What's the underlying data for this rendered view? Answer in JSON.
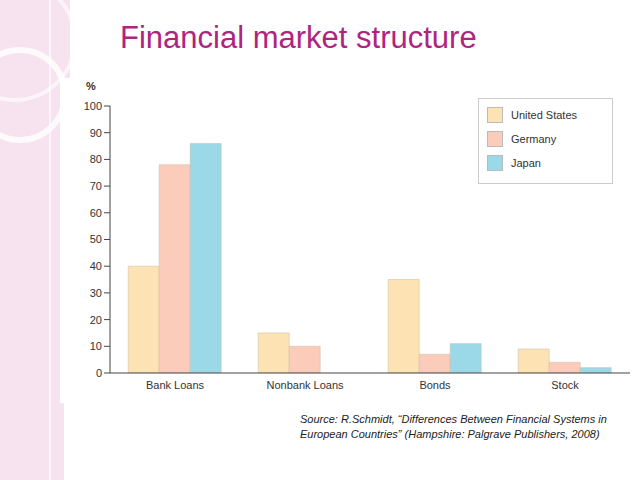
{
  "chart_data": {
    "type": "bar",
    "title": "Financial market structure",
    "y_label": "%",
    "categories": [
      "Bank Loans",
      "Nonbank Loans",
      "Bonds",
      "Stock"
    ],
    "series": [
      {
        "name": "United States",
        "color": "#fde3b3",
        "values": [
          40,
          15,
          35,
          9
        ]
      },
      {
        "name": "Germany",
        "color": "#fcccba",
        "values": [
          78,
          10,
          7,
          4
        ]
      },
      {
        "name": "Japan",
        "color": "#9cd9e8",
        "values": [
          86,
          0,
          11,
          2
        ]
      }
    ],
    "ylim": [
      0,
      100
    ],
    "yticks": [
      0,
      10,
      20,
      30,
      40,
      50,
      60,
      70,
      80,
      90,
      100
    ],
    "grid": false,
    "legend": "top-right",
    "source": "Source: R.Schmidt, “Differences Between Financial Systems in European Countries” (Hampshire: Palgrave Publishers, 2008)"
  }
}
